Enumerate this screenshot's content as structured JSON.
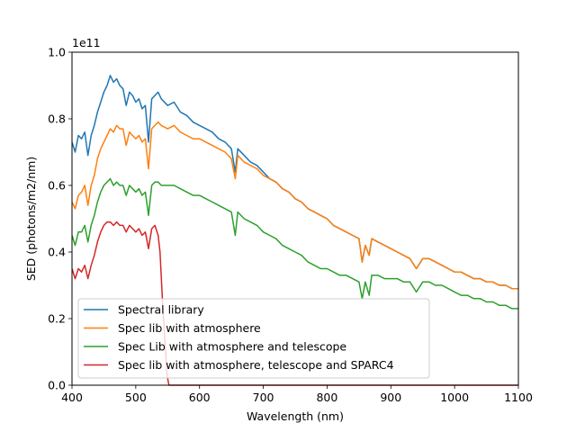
{
  "chart_data": {
    "type": "line",
    "title": "",
    "xlabel": "Wavelength (nm)",
    "ylabel": "SED (photons/m2/nm)",
    "y_offset_label": "1e11",
    "xlim": [
      400,
      1100
    ],
    "ylim": [
      0.0,
      1.0
    ],
    "y_scale_factor": 100000000000.0,
    "xticks": [
      400,
      500,
      600,
      700,
      800,
      900,
      1000,
      1100
    ],
    "xtick_labels": [
      "400",
      "500",
      "600",
      "700",
      "800",
      "900",
      "1000",
      "1100"
    ],
    "yticks": [
      0.0,
      0.2,
      0.4,
      0.6,
      0.8,
      1.0
    ],
    "ytick_labels": [
      "0.0",
      "0.2",
      "0.4",
      "0.6",
      "0.8",
      "1.0"
    ],
    "grid": false,
    "legend_position": "lower-left",
    "series": [
      {
        "name": "Spectral library",
        "color": "#1f77b4",
        "x": [
          400,
          405,
          410,
          415,
          420,
          425,
          430,
          435,
          440,
          445,
          450,
          455,
          460,
          465,
          470,
          475,
          480,
          485,
          490,
          495,
          500,
          505,
          510,
          515,
          520,
          525,
          530,
          535,
          540,
          550,
          560,
          570,
          580,
          590,
          600,
          610,
          620,
          630,
          640,
          650,
          656,
          660,
          670,
          680,
          690,
          700,
          710,
          720,
          730,
          740,
          750,
          760,
          770,
          780,
          790,
          800,
          810,
          820,
          830,
          840,
          850,
          855,
          860,
          866,
          870,
          880,
          890,
          900,
          910,
          920,
          930,
          940,
          950,
          960,
          970,
          980,
          990,
          1000,
          1010,
          1020,
          1030,
          1040,
          1050,
          1060,
          1070,
          1080,
          1090,
          1100
        ],
        "y": [
          0.73,
          0.7,
          0.75,
          0.74,
          0.76,
          0.69,
          0.75,
          0.78,
          0.82,
          0.85,
          0.88,
          0.9,
          0.93,
          0.91,
          0.92,
          0.9,
          0.89,
          0.84,
          0.88,
          0.87,
          0.85,
          0.86,
          0.83,
          0.84,
          0.73,
          0.86,
          0.87,
          0.88,
          0.86,
          0.84,
          0.85,
          0.82,
          0.81,
          0.79,
          0.78,
          0.77,
          0.76,
          0.74,
          0.73,
          0.71,
          0.64,
          0.71,
          0.69,
          0.67,
          0.66,
          0.64,
          0.62,
          0.61,
          0.59,
          0.58,
          0.56,
          0.55,
          0.53,
          0.52,
          0.51,
          0.5,
          0.48,
          0.47,
          0.46,
          0.45,
          0.44,
          0.37,
          0.42,
          0.39,
          0.44,
          0.43,
          0.42,
          0.41,
          0.4,
          0.39,
          0.38,
          0.35,
          0.38,
          0.38,
          0.37,
          0.36,
          0.35,
          0.34,
          0.34,
          0.33,
          0.32,
          0.32,
          0.31,
          0.31,
          0.3,
          0.3,
          0.29,
          0.29
        ]
      },
      {
        "name": "Spec lib with atmosphere",
        "color": "#ff7f0e",
        "x": [
          400,
          405,
          410,
          415,
          420,
          425,
          430,
          435,
          440,
          445,
          450,
          455,
          460,
          465,
          470,
          475,
          480,
          485,
          490,
          495,
          500,
          505,
          510,
          515,
          520,
          525,
          530,
          535,
          540,
          550,
          560,
          570,
          580,
          590,
          600,
          610,
          620,
          630,
          640,
          650,
          656,
          660,
          670,
          680,
          690,
          700,
          710,
          720,
          730,
          740,
          750,
          760,
          770,
          780,
          790,
          800,
          810,
          820,
          830,
          840,
          850,
          855,
          860,
          866,
          870,
          880,
          890,
          900,
          910,
          920,
          930,
          940,
          950,
          960,
          970,
          980,
          990,
          1000,
          1010,
          1020,
          1030,
          1040,
          1050,
          1060,
          1070,
          1080,
          1090,
          1100
        ],
        "y": [
          0.55,
          0.53,
          0.57,
          0.58,
          0.6,
          0.54,
          0.6,
          0.63,
          0.68,
          0.71,
          0.73,
          0.75,
          0.77,
          0.76,
          0.78,
          0.77,
          0.77,
          0.72,
          0.76,
          0.75,
          0.74,
          0.75,
          0.73,
          0.74,
          0.65,
          0.77,
          0.78,
          0.79,
          0.78,
          0.77,
          0.78,
          0.76,
          0.75,
          0.74,
          0.74,
          0.73,
          0.72,
          0.71,
          0.7,
          0.68,
          0.62,
          0.69,
          0.67,
          0.66,
          0.65,
          0.63,
          0.62,
          0.61,
          0.59,
          0.58,
          0.56,
          0.55,
          0.53,
          0.52,
          0.51,
          0.5,
          0.48,
          0.47,
          0.46,
          0.45,
          0.44,
          0.37,
          0.42,
          0.39,
          0.44,
          0.43,
          0.42,
          0.41,
          0.4,
          0.39,
          0.38,
          0.35,
          0.38,
          0.38,
          0.37,
          0.36,
          0.35,
          0.34,
          0.34,
          0.33,
          0.32,
          0.32,
          0.31,
          0.31,
          0.3,
          0.3,
          0.29,
          0.29
        ]
      },
      {
        "name": "Spec Lib with atmosphere and telescope",
        "color": "#2ca02c",
        "x": [
          400,
          405,
          410,
          415,
          420,
          425,
          430,
          435,
          440,
          445,
          450,
          455,
          460,
          465,
          470,
          475,
          480,
          485,
          490,
          495,
          500,
          505,
          510,
          515,
          520,
          525,
          530,
          535,
          540,
          550,
          560,
          570,
          580,
          590,
          600,
          610,
          620,
          630,
          640,
          650,
          656,
          660,
          670,
          680,
          690,
          700,
          710,
          720,
          730,
          740,
          750,
          760,
          770,
          780,
          790,
          800,
          810,
          820,
          830,
          840,
          850,
          855,
          860,
          866,
          870,
          880,
          890,
          900,
          910,
          920,
          930,
          940,
          950,
          960,
          970,
          980,
          990,
          1000,
          1010,
          1020,
          1030,
          1040,
          1050,
          1060,
          1070,
          1080,
          1090,
          1100
        ],
        "y": [
          0.45,
          0.42,
          0.46,
          0.46,
          0.48,
          0.43,
          0.48,
          0.51,
          0.55,
          0.58,
          0.6,
          0.61,
          0.62,
          0.6,
          0.61,
          0.6,
          0.6,
          0.57,
          0.6,
          0.59,
          0.58,
          0.59,
          0.57,
          0.58,
          0.51,
          0.6,
          0.61,
          0.61,
          0.6,
          0.6,
          0.6,
          0.59,
          0.58,
          0.57,
          0.57,
          0.56,
          0.55,
          0.54,
          0.53,
          0.52,
          0.45,
          0.52,
          0.5,
          0.49,
          0.48,
          0.46,
          0.45,
          0.44,
          0.42,
          0.41,
          0.4,
          0.39,
          0.37,
          0.36,
          0.35,
          0.35,
          0.34,
          0.33,
          0.33,
          0.32,
          0.31,
          0.26,
          0.31,
          0.27,
          0.33,
          0.33,
          0.32,
          0.32,
          0.32,
          0.31,
          0.31,
          0.28,
          0.31,
          0.31,
          0.3,
          0.3,
          0.29,
          0.28,
          0.27,
          0.27,
          0.26,
          0.26,
          0.25,
          0.25,
          0.24,
          0.24,
          0.23,
          0.23
        ]
      },
      {
        "name": "Spec lib with atmosphere, telescope and SPARC4",
        "color": "#d62728",
        "x": [
          400,
          405,
          410,
          415,
          420,
          425,
          430,
          435,
          440,
          445,
          450,
          455,
          460,
          465,
          470,
          475,
          480,
          485,
          490,
          495,
          500,
          505,
          510,
          515,
          520,
          525,
          530,
          535,
          538,
          542,
          546,
          549,
          552,
          560,
          600,
          700,
          800,
          900,
          1000,
          1100
        ],
        "y": [
          0.35,
          0.32,
          0.35,
          0.34,
          0.36,
          0.32,
          0.36,
          0.39,
          0.43,
          0.46,
          0.48,
          0.49,
          0.49,
          0.48,
          0.49,
          0.48,
          0.48,
          0.46,
          0.48,
          0.47,
          0.46,
          0.47,
          0.45,
          0.46,
          0.41,
          0.47,
          0.48,
          0.45,
          0.4,
          0.25,
          0.12,
          0.03,
          0.0,
          0.0,
          0.0,
          0.0,
          0.0,
          0.0,
          0.0,
          0.0
        ]
      }
    ]
  }
}
